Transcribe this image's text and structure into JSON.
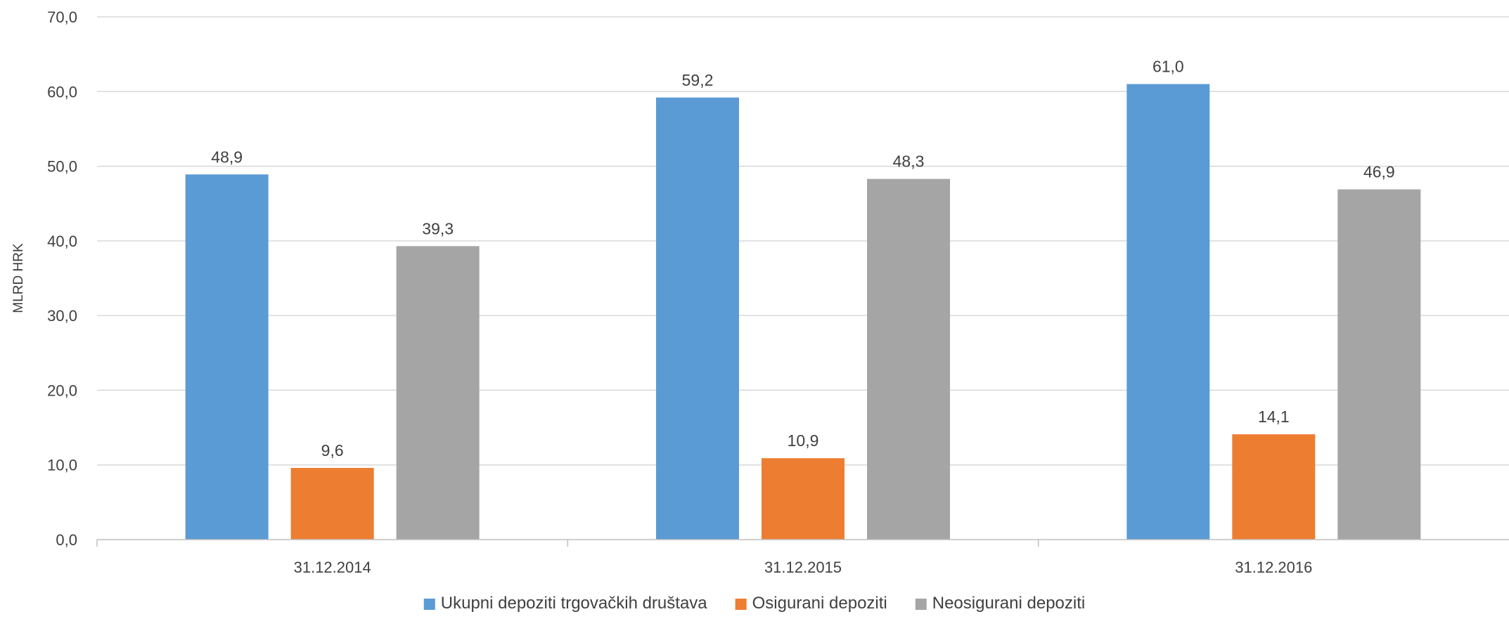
{
  "chart_data": {
    "type": "bar",
    "title": "",
    "xlabel": "",
    "ylabel": "MLRD HRK",
    "ylim": [
      0,
      70
    ],
    "yticks": [
      "0,0",
      "10,0",
      "20,0",
      "30,0",
      "40,0",
      "50,0",
      "60,0",
      "70,0"
    ],
    "categories": [
      "31.12.2014",
      "31.12.2015",
      "31.12.2016"
    ],
    "series": [
      {
        "name": "Ukupni depoziti trgovačkih društava",
        "color": "#5B9BD5",
        "values": [
          48.9,
          59.2,
          61.0
        ],
        "labels": [
          "48,9",
          "59,2",
          "61,0"
        ]
      },
      {
        "name": "Osigurani depoziti",
        "color": "#ED7D31",
        "values": [
          9.6,
          10.9,
          14.1
        ],
        "labels": [
          "9,6",
          "10,9",
          "14,1"
        ]
      },
      {
        "name": "Neosigurani depoziti",
        "color": "#A5A5A5",
        "values": [
          39.3,
          48.3,
          46.9
        ],
        "labels": [
          "39,3",
          "48,3",
          "46,9"
        ]
      }
    ],
    "grid": true,
    "legend_position": "bottom"
  }
}
